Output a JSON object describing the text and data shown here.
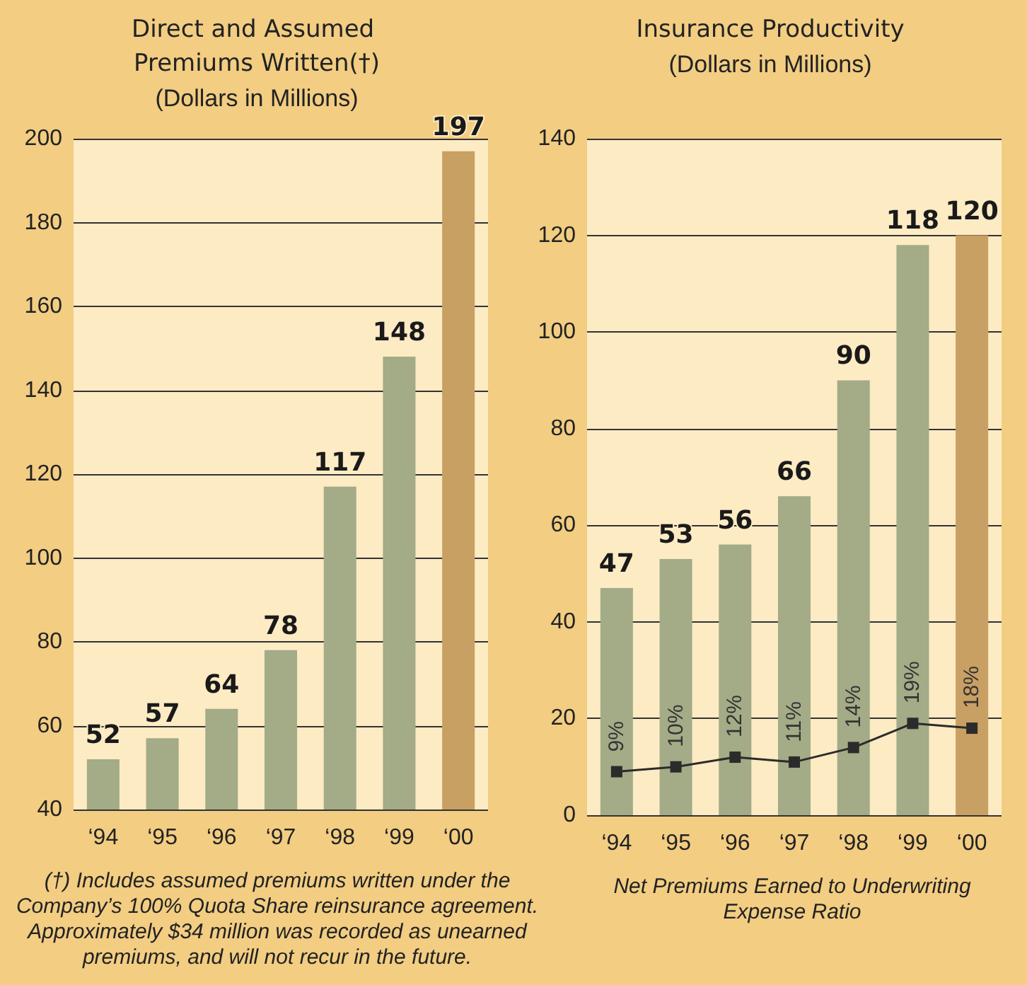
{
  "chart_data": [
    {
      "type": "bar",
      "title": "Direct and Assumed Premiums Written(†)",
      "subtitle": "(Dollars in Millions)",
      "categories": [
        "‘94",
        "‘95",
        "‘96",
        "‘97",
        "‘98",
        "‘99",
        "‘00"
      ],
      "values": [
        52,
        57,
        64,
        78,
        117,
        148,
        197
      ],
      "colors": [
        "#a3ab87",
        "#a3ab87",
        "#a3ab87",
        "#a3ab87",
        "#a3ab87",
        "#a3ab87",
        "#c9a063"
      ],
      "ylim": [
        40,
        200
      ],
      "yticks": [
        40,
        60,
        80,
        100,
        120,
        140,
        160,
        180,
        200
      ],
      "grid": "y",
      "data_labels": true,
      "annotations": [
        "(†) Includes assumed premiums written under the Company’s 100% Quota Share reinsurance agreement. Approximately $34 million was recorded as unearned premiums, and will not recur in the future."
      ]
    },
    {
      "type": "bar",
      "title": "Insurance Productivity",
      "subtitle": "(Dollars in Millions)",
      "xlabel": "Net Premiums Earned to Underwriting Expense Ratio",
      "categories": [
        "‘94",
        "‘95",
        "‘96",
        "‘97",
        "‘98",
        "‘99",
        "‘00"
      ],
      "series": [
        {
          "type": "bar",
          "values": [
            47,
            53,
            56,
            66,
            90,
            118,
            120
          ],
          "value_labels": [
            "47",
            "53",
            "56",
            "66",
            "90",
            "118",
            "120"
          ],
          "colors": [
            "#a3ab87",
            "#a3ab87",
            "#a3ab87",
            "#a3ab87",
            "#a3ab87",
            "#a3ab87",
            "#c9a063"
          ]
        },
        {
          "type": "line",
          "color": "#2b2b2b",
          "marker": "square",
          "values": [
            9,
            10,
            12,
            11,
            14,
            19,
            18
          ],
          "value_labels": [
            "9%",
            "10%",
            "12%",
            "11%",
            "14%",
            "19%",
            "18%"
          ]
        }
      ],
      "ylim": [
        0,
        140
      ],
      "yticks": [
        0,
        20,
        40,
        60,
        80,
        100,
        120,
        140
      ],
      "grid": "y"
    }
  ]
}
